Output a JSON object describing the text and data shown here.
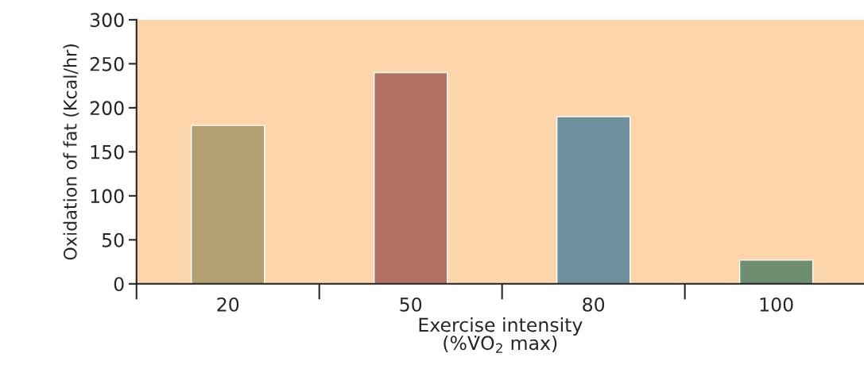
{
  "chart_data": {
    "type": "bar",
    "xlabel": "Exercise intensity\n(%V̇O$_{2}$ max)",
    "ylabel": "Oxidation of fat (Kcal/hr)",
    "categories": [
      "20",
      "50",
      "80",
      "100"
    ],
    "values": [
      180,
      240,
      190,
      27
    ],
    "colors": [
      "#b3a072",
      "#b07062",
      "#6d909c",
      "#6d8f6f"
    ],
    "ylim": [
      0,
      300
    ],
    "yticks": [
      0,
      50,
      100,
      150,
      200,
      250,
      300
    ],
    "grid": false
  }
}
